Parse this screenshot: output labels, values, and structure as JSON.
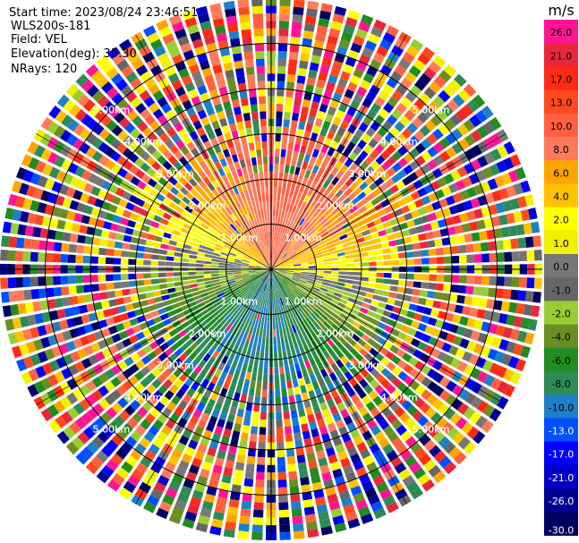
{
  "header": {
    "start_time": "Start time: 2023/08/24 23:46:51",
    "instrument": "WLS200s-181",
    "field": "Field: VEL",
    "elevation": "Elevation(deg): 35.30",
    "nrays": "NRays: 120"
  },
  "chart_data": {
    "type": "heatmap",
    "projection": "polar (PPI)",
    "range_ring_labels": [
      "1.00km",
      "2.00km",
      "3.00km",
      "4.00km",
      "5.00km"
    ],
    "range_rings_km": [
      1,
      2,
      3,
      4,
      5
    ],
    "spokes_deg": [
      0,
      30,
      60,
      90,
      120,
      150,
      180,
      210,
      240,
      270,
      300,
      330
    ],
    "nrays": 120,
    "max_range_km": 6.0,
    "colorbar": {
      "unit": "m/s",
      "ticks": [
        "26.0",
        "21.0",
        "17.0",
        "13.0",
        "10.0",
        "8.0",
        "6.0",
        "4.0",
        "2.0",
        "1.0",
        "0.0",
        "-1.0",
        "-2.0",
        "-4.0",
        "-6.0",
        "-8.0",
        "-10.0",
        "-13.0",
        "-17.0",
        "-21.0",
        "-26.0",
        "-30.0"
      ],
      "colors": [
        "#ff1493",
        "#e8283a",
        "#ff2a14",
        "#ff4a1e",
        "#ff6040",
        "#ff7a5a",
        "#ffa500",
        "#ffc200",
        "#ffff00",
        "#f0f000",
        "#777777",
        "#666666",
        "#9acd32",
        "#6b8e23",
        "#228b22",
        "#2e8b57",
        "#1e80c8",
        "#0050ff",
        "#0000ff",
        "#0000c8",
        "#000090",
        "#000060"
      ]
    },
    "velocity_pattern": [
      {
        "sector": "north",
        "azimuth_center_deg": 0,
        "near_range_ms": 8.0
      },
      {
        "sector": "east",
        "azimuth_center_deg": 90,
        "near_range_ms": 1.5
      },
      {
        "sector": "south",
        "azimuth_center_deg": 180,
        "near_range_ms": -8.0
      },
      {
        "sector": "west",
        "azimuth_center_deg": 270,
        "near_range_ms": -1.5
      }
    ]
  }
}
